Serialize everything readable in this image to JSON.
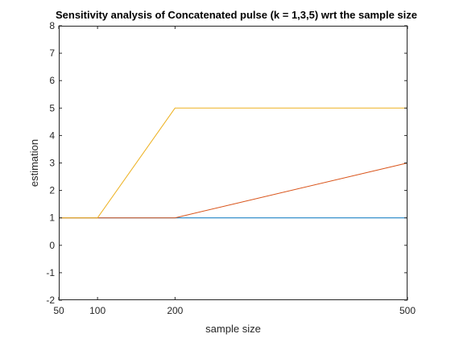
{
  "chart_data": {
    "type": "line",
    "title": "Sensitivity analysis of Concatenated pulse (k = 1,3,5) wrt the sample size",
    "xlabel": "sample size",
    "ylabel": "estimation",
    "x": [
      50,
      100,
      200,
      500
    ],
    "xticks": [
      50,
      100,
      200,
      500
    ],
    "yticks": [
      -2,
      -1,
      0,
      1,
      2,
      3,
      4,
      5,
      6,
      7,
      8
    ],
    "xlim": [
      50,
      500
    ],
    "ylim": [
      -2,
      8
    ],
    "grid": false,
    "series": [
      {
        "color": "#0072BD",
        "values": [
          1,
          1,
          1,
          1
        ]
      },
      {
        "color": "#D95319",
        "values": [
          1,
          1,
          1,
          3
        ]
      },
      {
        "color": "#EDB120",
        "values": [
          1,
          1,
          5,
          5
        ]
      }
    ]
  }
}
